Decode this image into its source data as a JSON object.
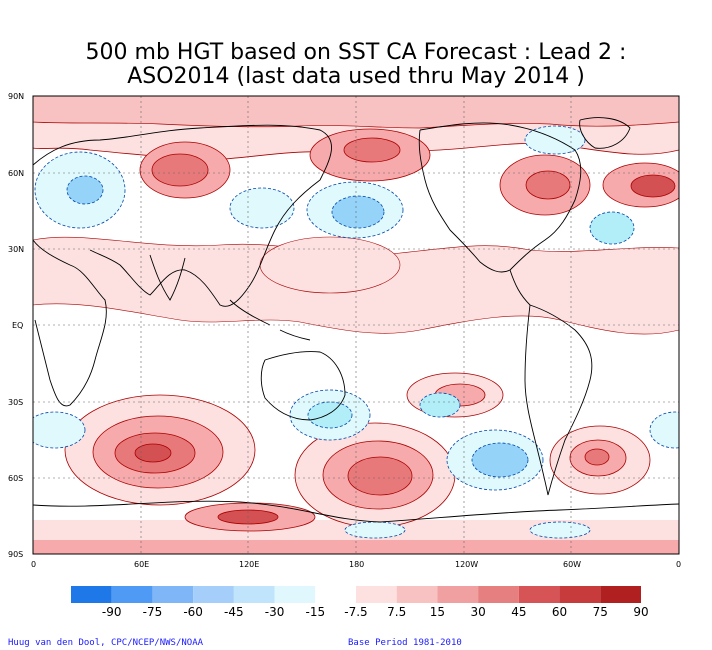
{
  "title": {
    "line1": "500 mb HGT based on SST CA Forecast : Lead 2 :",
    "line2": "ASO2014 (last data used thru May 2014 )"
  },
  "map": {
    "projection": "cylindrical equidistant, 0-360 longitude",
    "lat_labels": [
      "90N",
      "60N",
      "30N",
      "EQ",
      "30S",
      "60S",
      "90S"
    ],
    "lon_labels": [
      "0",
      "60E",
      "120E",
      "180",
      "120W",
      "60W",
      "0"
    ],
    "grid": "dashed",
    "colors": {
      "ocean": "#ffffff",
      "positive_light": "#fde1e1",
      "positive_mid": "#f7aaab",
      "positive_strong": "#e8797b",
      "positive_core": "#d35053",
      "negative_light": "#dff9fc",
      "negative_mid": "#b1eef7",
      "negative_strong": "#95d3f9",
      "contour_positive": "#aa0000",
      "contour_negative": "#0044aa",
      "coastline": "#000000"
    }
  },
  "colorbar": {
    "labels": [
      "-90",
      "-75",
      "-60",
      "-45",
      "-30",
      "-15",
      "-7.5",
      "7.5",
      "15",
      "30",
      "45",
      "60",
      "75",
      "90"
    ],
    "colors": [
      "#1f78e8",
      "#4f9af4",
      "#7fb6f8",
      "#a5cefa",
      "#bfe4fb",
      "#dff7fd",
      "#ffffff",
      "#fde0e0",
      "#f9c2c2",
      "#f0a0a1",
      "#e57f80",
      "#d65456",
      "#c83b3d",
      "#b02020"
    ]
  },
  "footer": {
    "credit": "Huug van den Dool, CPC/NCEP/NWS/NOAA",
    "base_period": "Base Period 1981-2010"
  }
}
